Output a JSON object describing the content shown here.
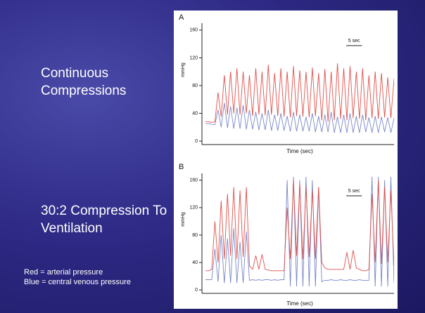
{
  "slide": {
    "heading_1": "Continuous Compressions",
    "heading_2": "30:2 Compression To Ventilation",
    "legend_red": "Red = arterial pressure",
    "legend_blue": "Blue = central venous pressure"
  },
  "chart_data": [
    {
      "type": "line",
      "label": "A",
      "ylabel": "mmHg",
      "xlabel": "Time (sec)",
      "scale_bar": {
        "value": 5,
        "label": "5 sec"
      },
      "x": [
        0,
        1,
        2,
        3,
        4,
        5,
        6,
        7,
        8,
        9,
        10,
        11,
        12,
        13,
        14,
        15,
        16,
        17,
        18,
        19,
        20,
        21,
        22,
        23,
        24,
        25,
        26,
        27,
        28,
        29,
        30,
        31,
        32,
        33,
        34,
        35,
        36,
        37,
        38,
        39,
        40,
        41,
        42,
        43,
        44,
        45,
        46,
        47,
        48,
        49,
        50,
        51,
        52,
        53,
        54,
        55,
        56,
        57,
        58,
        59,
        60
      ],
      "xlim": [
        0,
        60
      ],
      "ylim": [
        -5,
        170
      ],
      "yticks": [
        0,
        40,
        80,
        120,
        160
      ],
      "series": [
        {
          "color": "#7a88c8",
          "values": [
            25,
            25,
            24,
            24,
            45,
            20,
            55,
            19,
            50,
            18,
            48,
            18,
            52,
            17,
            45,
            17,
            42,
            16,
            40,
            16,
            45,
            15,
            38,
            15,
            40,
            15,
            36,
            14,
            42,
            14,
            38,
            14,
            35,
            14,
            40,
            13,
            36,
            13,
            38,
            13,
            42,
            12,
            35,
            12,
            38,
            12,
            40,
            12,
            36,
            12,
            38,
            13,
            34,
            12,
            36,
            12,
            35,
            13,
            34,
            12,
            33
          ]
        },
        {
          "color": "#e0504a",
          "values": [
            28,
            28,
            27,
            28,
            70,
            35,
            95,
            38,
            100,
            40,
            105,
            38,
            100,
            40,
            95,
            36,
            105,
            38,
            100,
            37,
            110,
            38,
            98,
            36,
            105,
            35,
            100,
            34,
            108,
            36,
            102,
            35,
            100,
            34,
            106,
            36,
            98,
            30,
            104,
            28,
            100,
            30,
            112,
            32,
            105,
            30,
            108,
            33,
            100,
            32,
            105,
            30,
            95,
            33,
            100,
            32,
            98,
            34,
            92,
            33,
            90
          ]
        }
      ]
    },
    {
      "type": "line",
      "label": "B",
      "ylabel": "mmHg",
      "xlabel": "Time (sec)",
      "scale_bar": {
        "value": 5,
        "label": "5 sec"
      },
      "x": [
        0,
        1,
        2,
        3,
        4,
        5,
        6,
        7,
        8,
        9,
        10,
        11,
        12,
        13,
        14,
        15,
        16,
        17,
        18,
        19,
        20,
        21,
        22,
        23,
        24,
        25,
        26,
        27,
        28,
        29,
        30,
        31,
        32,
        33,
        34,
        35,
        36,
        37,
        38,
        39,
        40,
        41,
        42,
        43,
        44,
        45,
        46,
        47,
        48,
        49,
        50,
        51,
        52,
        53,
        54,
        55,
        56,
        57,
        58,
        59,
        60
      ],
      "xlim": [
        0,
        60
      ],
      "ylim": [
        -5,
        170
      ],
      "yticks": [
        0,
        40,
        80,
        120,
        160
      ],
      "series": [
        {
          "color": "#7a88c8",
          "values": [
            15,
            15,
            15,
            60,
            12,
            80,
            10,
            75,
            10,
            90,
            10,
            70,
            10,
            85,
            14,
            15,
            14,
            15,
            14,
            15,
            15,
            14,
            15,
            14,
            15,
            15,
            160,
            5,
            165,
            5,
            160,
            5,
            165,
            5,
            160,
            5,
            150,
            12,
            14,
            14,
            15,
            14,
            14,
            15,
            14,
            14,
            15,
            14,
            14,
            15,
            14,
            14,
            14,
            165,
            5,
            165,
            5,
            160,
            5,
            165,
            10
          ]
        },
        {
          "color": "#e0504a",
          "values": [
            28,
            28,
            30,
            100,
            40,
            130,
            45,
            140,
            50,
            150,
            45,
            145,
            48,
            150,
            35,
            30,
            50,
            30,
            52,
            30,
            29,
            28,
            28,
            28,
            28,
            28,
            120,
            45,
            160,
            50,
            155,
            45,
            150,
            48,
            145,
            45,
            150,
            40,
            32,
            30,
            30,
            30,
            30,
            30,
            30,
            55,
            30,
            58,
            32,
            30,
            28,
            28,
            30,
            140,
            40,
            160,
            38,
            150,
            40,
            145,
            35
          ]
        }
      ]
    }
  ]
}
